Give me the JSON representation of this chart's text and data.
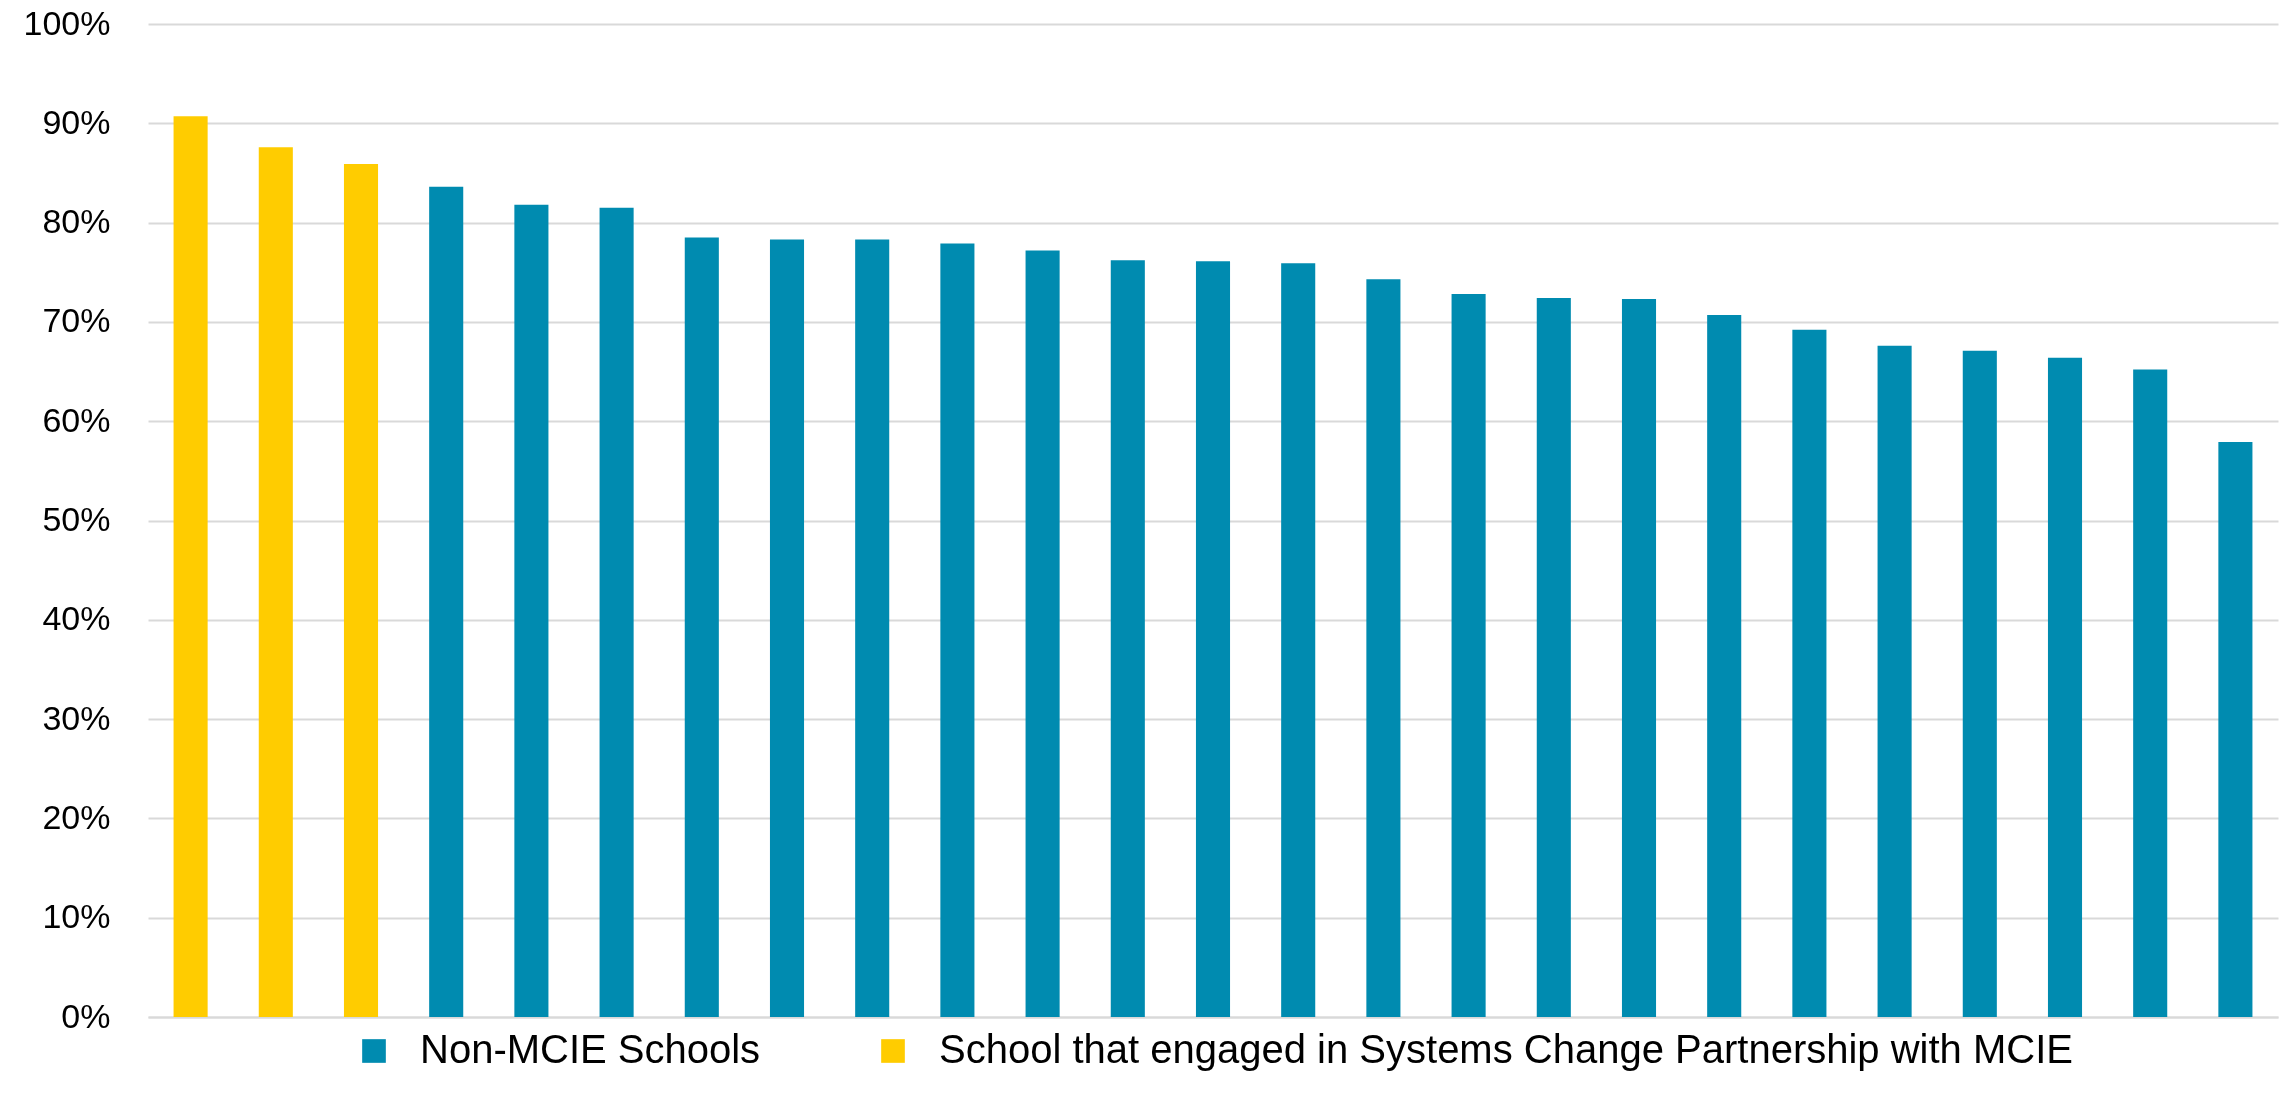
{
  "chart_data": {
    "type": "bar",
    "categories": [
      null,
      null,
      null,
      null,
      null,
      null,
      null,
      null,
      null,
      null,
      null,
      null,
      null,
      null,
      null,
      null,
      null,
      null,
      null,
      null,
      null,
      null,
      null,
      null,
      null
    ],
    "series": [
      {
        "name": "Non-MCIE Schools",
        "color": "#008bb0",
        "values": [
          null,
          null,
          null,
          83.6,
          81.8,
          81.5,
          78.5,
          78.3,
          78.3,
          77.9,
          77.2,
          76.2,
          76.1,
          75.9,
          74.3,
          72.8,
          72.4,
          72.3,
          70.7,
          69.2,
          67.6,
          67.1,
          66.4,
          65.2,
          57.9
        ]
      },
      {
        "name": "School that engaged in Systems Change Partnership with MCIE",
        "color": "#ffcc00",
        "values": [
          90.7,
          87.6,
          85.9,
          null,
          null,
          null,
          null,
          null,
          null,
          null,
          null,
          null,
          null,
          null,
          null,
          null,
          null,
          null,
          null,
          null,
          null,
          null,
          null,
          null,
          null
        ]
      }
    ],
    "ylim": [
      0,
      100
    ],
    "yticks": [
      {
        "value": 0,
        "label": "0%"
      },
      {
        "value": 10,
        "label": "10%"
      },
      {
        "value": 20,
        "label": "20%"
      },
      {
        "value": 30,
        "label": "30%"
      },
      {
        "value": 40,
        "label": "40%"
      },
      {
        "value": 50,
        "label": "50%"
      },
      {
        "value": 60,
        "label": "60%"
      },
      {
        "value": 70,
        "label": "70%"
      },
      {
        "value": 80,
        "label": "80%"
      },
      {
        "value": 90,
        "label": "90%"
      },
      {
        "value": 100,
        "label": "100%"
      }
    ],
    "grid": "y",
    "legend": "bottom"
  }
}
